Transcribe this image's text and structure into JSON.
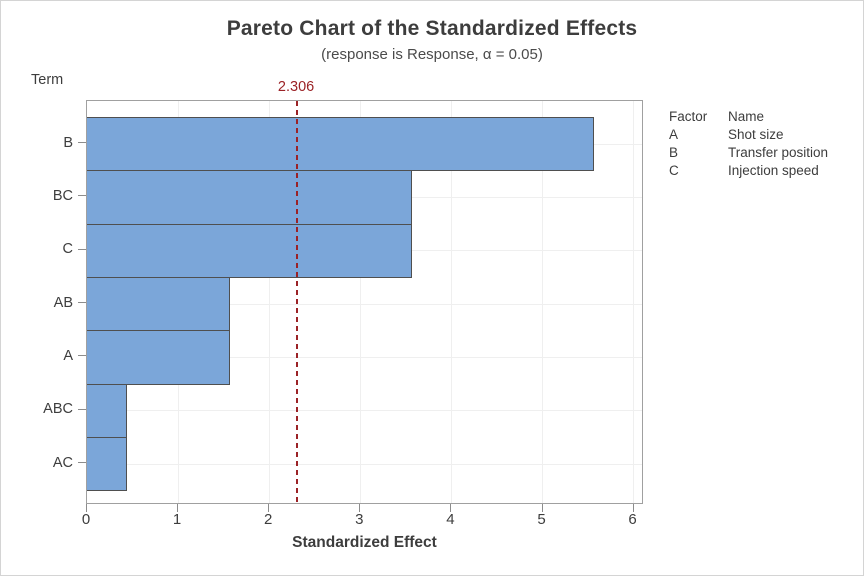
{
  "title": "Pareto Chart of the Standardized Effects",
  "subtitle": "(response is Response, α = 0.05)",
  "term_axis_label": "Term",
  "reference_line": {
    "value": 2.306,
    "label": "2.306",
    "color": "#9B2226"
  },
  "legend": {
    "headers": {
      "factor": "Factor",
      "name": "Name"
    },
    "rows": [
      {
        "factor": "A",
        "name": "Shot size"
      },
      {
        "factor": "B",
        "name": "Transfer position"
      },
      {
        "factor": "C",
        "name": "Injection speed"
      }
    ]
  },
  "colors": {
    "bar_fill": "#7BA6D9",
    "bar_border": "#4F4F4F",
    "reference_line": "#9B2226",
    "gridline": "#EFEFEF",
    "plot_border": "#A0A0A0",
    "tick": "#8C8C8C"
  },
  "chart_data": {
    "type": "bar",
    "orientation": "horizontal",
    "title": "Pareto Chart of the Standardized Effects",
    "subtitle": "(response is Response, α = 0.05)",
    "xlabel": "Standardized Effect",
    "ylabel": "Term",
    "categories": [
      "B",
      "BC",
      "C",
      "AB",
      "A",
      "ABC",
      "AC"
    ],
    "values": [
      5.56,
      3.57,
      3.57,
      1.57,
      1.57,
      0.44,
      0.44
    ],
    "x_ticks": [
      0,
      1,
      2,
      3,
      4,
      5,
      6
    ],
    "xlim": [
      0,
      6.11
    ],
    "reference_line": 2.306,
    "grid": "on",
    "legend_position": "right"
  }
}
